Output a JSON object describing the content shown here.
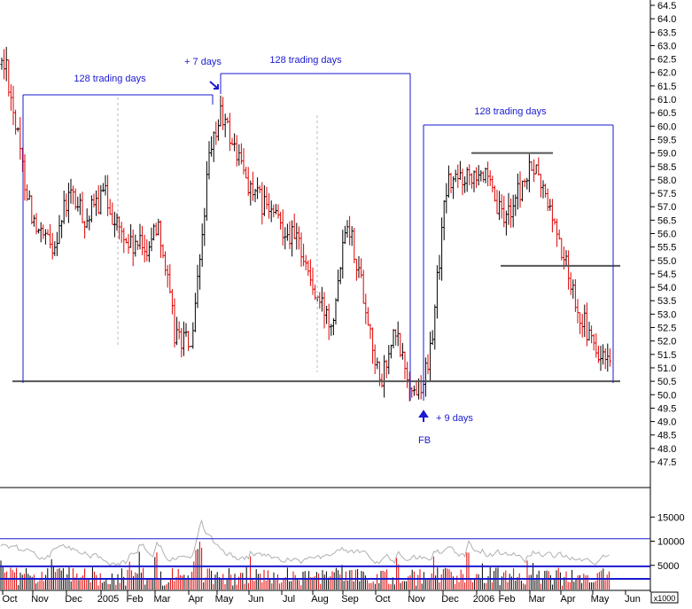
{
  "chart_data": [
    {
      "type": "candlestick",
      "title": "",
      "xlabel": "",
      "ylabel": "",
      "ylim": [
        47.5,
        64.5
      ],
      "y_ticks": [
        "64.5",
        "64.0",
        "63.5",
        "63.0",
        "62.5",
        "62.0",
        "61.5",
        "61.0",
        "60.5",
        "60.0",
        "59.5",
        "59.0",
        "58.5",
        "58.0",
        "57.5",
        "57.0",
        "56.5",
        "56.0",
        "55.5",
        "55.0",
        "54.5",
        "54.0",
        "53.5",
        "53.0",
        "52.5",
        "52.0",
        "51.5",
        "51.0",
        "50.5",
        "50.0",
        "49.5",
        "49.0",
        "48.5",
        "48.0",
        "47.5"
      ],
      "x_labels": [
        "Oct",
        "Nov",
        "Dec",
        "2005",
        "Feb",
        "Mar",
        "Apr",
        "May",
        "Jun",
        "Jul",
        "Aug",
        "Sep",
        "Oct",
        "Nov",
        "Dec",
        "2006",
        "Feb",
        "Mar",
        "Apr",
        "May",
        "Jun"
      ],
      "up_color": "#000000",
      "down_color": "#e00000",
      "price_path": [
        [
          "Oct",
          62.3
        ],
        [
          "Oct",
          58.5
        ],
        [
          "Oct",
          50.5
        ],
        [
          "Nov",
          56.0
        ],
        [
          "Nov",
          55.5
        ],
        [
          "Dec",
          57.5
        ],
        [
          "2005",
          57.5
        ],
        [
          "2005",
          56.0
        ],
        [
          "Feb",
          55.5
        ],
        [
          "Mar",
          56.5
        ],
        [
          "Mar",
          52.3
        ],
        [
          "Apr",
          51.8
        ],
        [
          "Apr",
          58.5
        ],
        [
          "May",
          60.5
        ],
        [
          "May",
          59.0
        ],
        [
          "Jun",
          57.5
        ],
        [
          "Jul",
          56.2
        ],
        [
          "Jul",
          55.5
        ],
        [
          "Aug",
          53.5
        ],
        [
          "Aug",
          52.8
        ],
        [
          "Sep",
          56.8
        ],
        [
          "Sep",
          54.0
        ],
        [
          "Oct",
          52.3
        ],
        [
          "Oct",
          50.2
        ],
        [
          "Nov",
          50.0
        ],
        [
          "Nov",
          51.0
        ],
        [
          "Dec",
          56.5
        ],
        [
          "Dec",
          57.8
        ],
        [
          "2006",
          58.5
        ],
        [
          "2006",
          57.0
        ],
        [
          "Feb",
          55.5
        ],
        [
          "Feb",
          56.5
        ],
        [
          "Mar",
          58.5
        ],
        [
          "Mar",
          57.0
        ],
        [
          "Apr",
          55.0
        ],
        [
          "Apr",
          53.0
        ],
        [
          "May",
          51.5
        ],
        [
          "May",
          51.0
        ]
      ],
      "horizontal_lines": [
        {
          "y": 50.5,
          "label": ""
        },
        {
          "y": 59.0,
          "label": ""
        },
        {
          "y": 54.8,
          "label": ""
        }
      ],
      "annotations": {
        "trading_days_1": "128 trading days",
        "plus_7_days": "+ 7 days",
        "trading_days_2": "128 trading days",
        "trading_days_3": "128 trading days",
        "plus_9_days": "+ 9 days",
        "fb": "FB"
      },
      "grid": false
    },
    {
      "type": "bar",
      "name": "volume",
      "unit_label": "x1000",
      "ylim": [
        0,
        20000
      ],
      "y_ticks": [
        "15000",
        "10000",
        "5000"
      ],
      "horizontal_lines": [
        10500,
        4800,
        2200
      ],
      "line_color": "#aaaaaa",
      "bar_colors": [
        "#000000",
        "#e00000"
      ]
    }
  ]
}
